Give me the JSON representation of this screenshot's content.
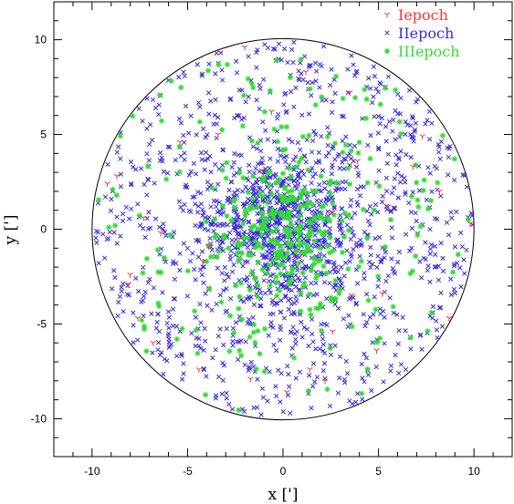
{
  "chart_data": {
    "type": "scatter",
    "xlabel": "x [']",
    "ylabel": "y [']",
    "xlim": [
      -12,
      12
    ],
    "ylim": [
      -12,
      12
    ],
    "x_ticks": [
      "-10",
      "-5",
      "0",
      "5",
      "10"
    ],
    "y_ticks": [
      "-10",
      "-5",
      "0",
      "5",
      "10"
    ],
    "x_tick_values": [
      -10,
      -5,
      0,
      5,
      10
    ],
    "y_tick_values": [
      -10,
      -5,
      0,
      5,
      10
    ],
    "grid": false,
    "legend_position": "top-right",
    "boundary_circle_radius": 10,
    "series": [
      {
        "name": "Iepoch",
        "marker": "tri-down",
        "color": "#ff3333",
        "points": [
          [
            -9.2,
            2.4
          ],
          [
            -8.7,
            2.8
          ],
          [
            -8.0,
            -2.4
          ],
          [
            -8.1,
            -2.9
          ],
          [
            -7.6,
            -4.7
          ],
          [
            -6.4,
            -0.2
          ],
          [
            -4.2,
            -1.7
          ],
          [
            -3.9,
            -0.9
          ],
          [
            -2.0,
            9.6
          ],
          [
            1.2,
            8.3
          ],
          [
            3.5,
            7.2
          ],
          [
            6.8,
            3.3
          ],
          [
            9.8,
            0.3
          ],
          [
            8.7,
            -4.7
          ],
          [
            5.2,
            -3.4
          ],
          [
            3.6,
            -3.5
          ],
          [
            2.2,
            -8.0
          ],
          [
            0.2,
            -8.6
          ],
          [
            -1.7,
            -7.9
          ],
          [
            -5.4,
            4.6
          ],
          [
            -3.4,
            5.0
          ],
          [
            2.6,
            -5.4
          ],
          [
            4.9,
            -6.4
          ],
          [
            -6.8,
            -6.0
          ],
          [
            7.3,
            4.9
          ],
          [
            1.4,
            -7.4
          ],
          [
            -4.4,
            -7.4
          ],
          [
            8.2,
            2.0
          ],
          [
            -1.1,
            3.1
          ],
          [
            0.8,
            -1.4
          ],
          [
            2.6,
            0.9
          ],
          [
            -2.3,
            -0.5
          ],
          [
            5.5,
            1.2
          ],
          [
            -7.3,
            0.6
          ],
          [
            3.9,
            3.6
          ],
          [
            -0.6,
            6.2
          ]
        ]
      },
      {
        "name": "IIepoch",
        "marker": "x",
        "color": "#3a2bd6",
        "points": []
      },
      {
        "name": "IIIepoch",
        "marker": "star",
        "color": "#33dd33",
        "points": []
      }
    ]
  }
}
